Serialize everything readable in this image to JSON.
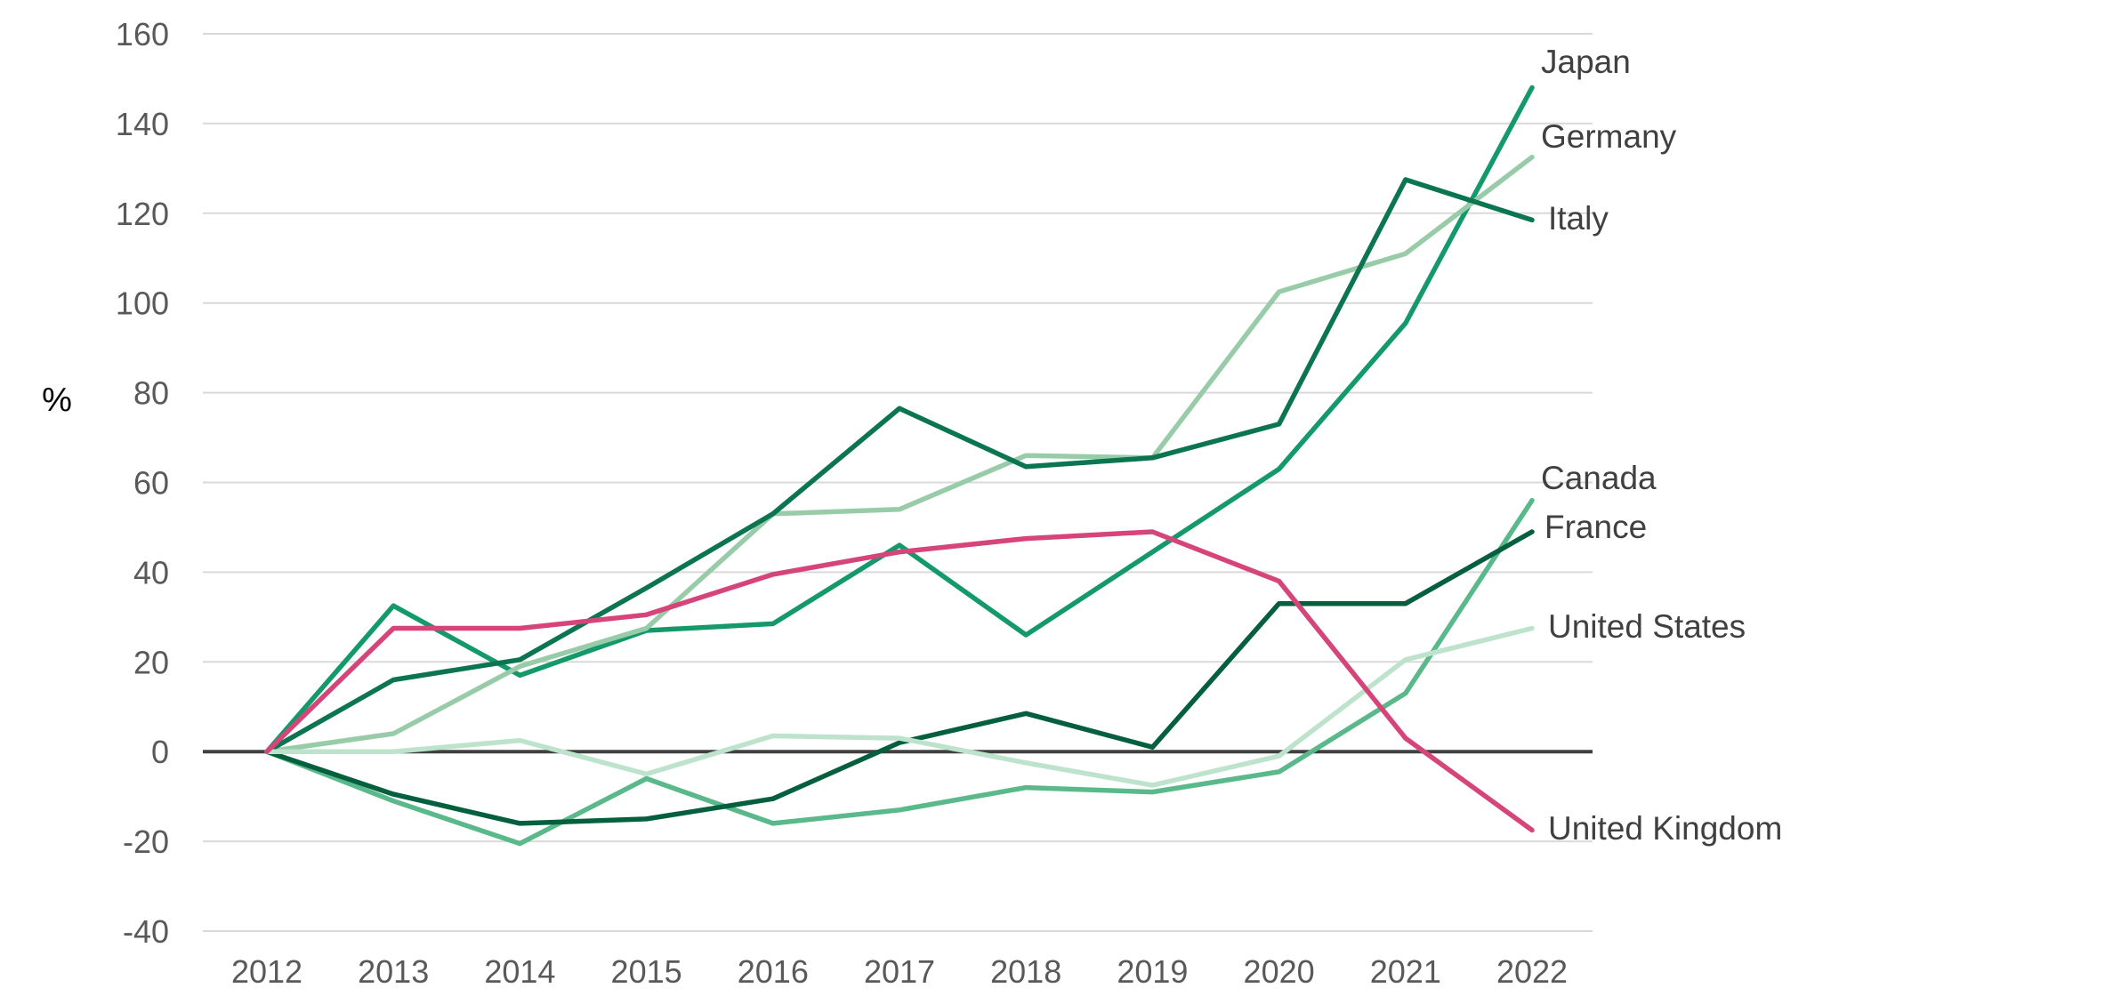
{
  "chart_data": {
    "type": "line",
    "title": "",
    "xlabel": "",
    "ylabel": "%",
    "ylim": [
      -40,
      160
    ],
    "yticks": [
      -40,
      -20,
      0,
      20,
      40,
      60,
      80,
      100,
      120,
      140,
      160
    ],
    "categories": [
      "2012",
      "2013",
      "2014",
      "2015",
      "2016",
      "2017",
      "2018",
      "2019",
      "2020",
      "2021",
      "2022"
    ],
    "grid": true,
    "legend": "direct labels at line ends",
    "series": [
      {
        "name": "Japan",
        "color": "#14996b",
        "values": [
          0,
          32.5,
          17,
          27,
          28.5,
          46,
          26,
          44.5,
          63,
          95.5,
          148
        ]
      },
      {
        "name": "Germany",
        "color": "#98cca9",
        "values": [
          0,
          4,
          19,
          27.5,
          53,
          54,
          66,
          65.5,
          102.5,
          111,
          132.5
        ]
      },
      {
        "name": "Italy",
        "color": "#0b7450",
        "values": [
          0,
          16,
          20.5,
          36.5,
          53,
          76.5,
          63.5,
          65.5,
          73,
          127.5,
          118.5
        ]
      },
      {
        "name": "Canada",
        "color": "#5ab98b",
        "values": [
          0,
          -11,
          -20.5,
          -6,
          -16,
          -13,
          -8,
          -9,
          -4.5,
          13,
          56
        ]
      },
      {
        "name": "France",
        "color": "#045f3f",
        "values": [
          0,
          -9.5,
          -16,
          -15,
          -10.5,
          2,
          8.5,
          1,
          33,
          33,
          49
        ]
      },
      {
        "name": "United States",
        "color": "#bde3cd",
        "values": [
          0,
          0,
          2.5,
          -5,
          3.5,
          3,
          -2.5,
          -7.5,
          -1,
          20.5,
          27.5
        ]
      },
      {
        "name": "United Kingdom",
        "color": "#d6457a",
        "values": [
          0,
          27.5,
          27.5,
          30.5,
          39.5,
          44.5,
          47.5,
          49,
          38,
          3,
          -17.5
        ]
      }
    ]
  }
}
